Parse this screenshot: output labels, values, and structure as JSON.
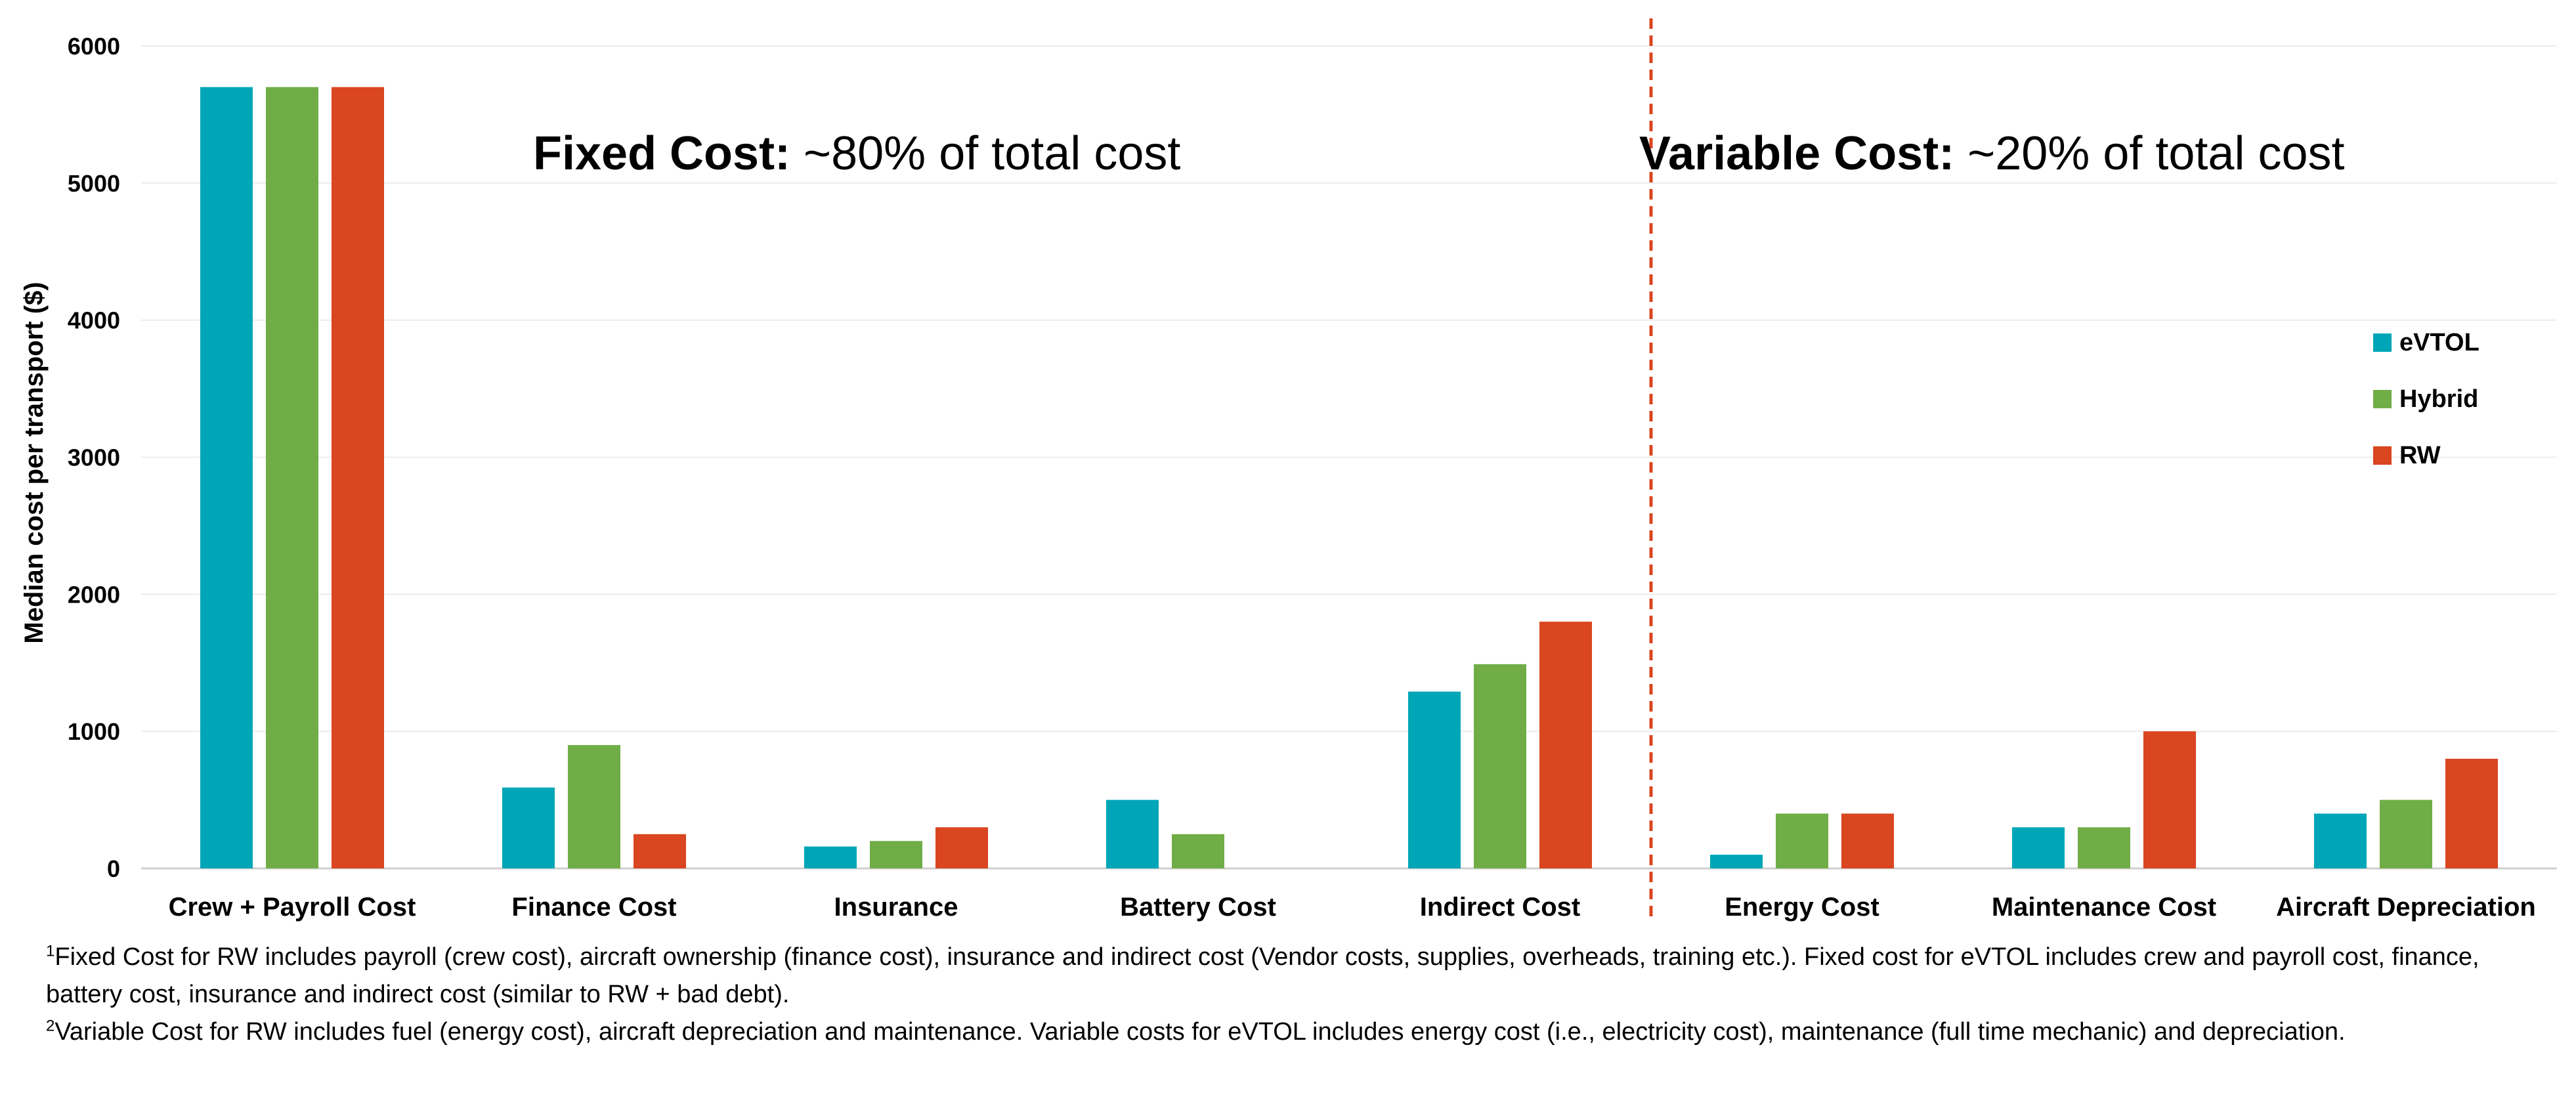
{
  "chart_data": {
    "type": "bar",
    "title": "",
    "xlabel": "",
    "ylabel": "Median cost per transport ($)",
    "ylim": [
      0,
      6000
    ],
    "yticks": [
      0,
      1000,
      2000,
      3000,
      4000,
      5000,
      6000
    ],
    "grid": true,
    "legend_position": "right",
    "categories": [
      "Crew + Payroll Cost",
      "Finance Cost",
      "Insurance",
      "Battery Cost",
      "Indirect Cost",
      "Energy Cost",
      "Maintenance Cost",
      "Aircraft Depreciation"
    ],
    "series": [
      {
        "name": "eVTOL",
        "color": "#00A6B8",
        "values": [
          5700,
          590,
          160,
          500,
          1290,
          100,
          300,
          400
        ]
      },
      {
        "name": "Hybrid",
        "color": "#70AD47",
        "values": [
          5700,
          900,
          200,
          250,
          1490,
          400,
          300,
          500
        ]
      },
      {
        "name": "RW",
        "color": "#D9461F",
        "values": [
          5700,
          250,
          300,
          0,
          1800,
          400,
          1000,
          800
        ]
      }
    ],
    "divider_after_category": "Indirect Cost",
    "divider_color": "#D9461F",
    "regions": [
      {
        "bold": "Fixed Cost:",
        "text": " ~80% of total cost"
      },
      {
        "bold": "Variable Cost:",
        "text": " ~20% of total cost"
      }
    ]
  },
  "footnotes": [
    {
      "mark": "1",
      "text": "Fixed Cost for RW includes payroll (crew cost), aircraft ownership (finance cost), insurance and indirect cost (Vendor costs, supplies, overheads, training etc.). Fixed cost for eVTOL includes crew and payroll cost, finance, battery cost, insurance and indirect cost (similar to RW + bad debt)."
    },
    {
      "mark": "2",
      "text": "Variable Cost for RW includes fuel (energy cost), aircraft depreciation and maintenance. Variable costs for eVTOL includes energy cost (i.e., electricity cost), maintenance (full time mechanic) and depreciation."
    }
  ]
}
